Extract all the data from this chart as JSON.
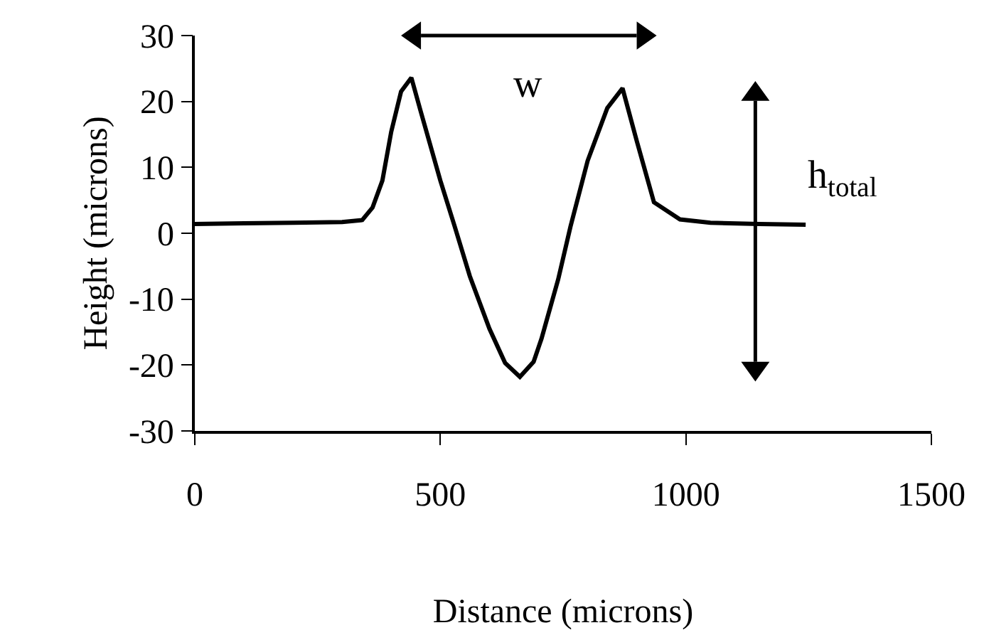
{
  "chart_data": {
    "type": "line",
    "xlabel": "Distance (microns)",
    "ylabel": "Height (microns)",
    "x": [
      0,
      100,
      200,
      300,
      341,
      362,
      382,
      400,
      420,
      441,
      460,
      500,
      529,
      560,
      600,
      632,
      662,
      690,
      706,
      740,
      765,
      800,
      840,
      871,
      900,
      935,
      988,
      1050,
      1150,
      1244
    ],
    "series": [
      {
        "color": "#000000",
        "values": [
          1.4,
          1.5,
          1.6,
          1.7,
          2.0,
          3.9,
          8.0,
          15.4,
          21.5,
          23.6,
          18.5,
          8.0,
          1.1,
          -6.5,
          -14.5,
          -19.7,
          -21.8,
          -19.5,
          -16.0,
          -7.0,
          1.0,
          11.0,
          19.0,
          22.0,
          14.0,
          4.7,
          2.1,
          1.6,
          1.4,
          1.3
        ]
      }
    ],
    "xlim": [
      0,
      1500
    ],
    "xticks": [
      0,
      500,
      1000,
      1500
    ],
    "ylim": [
      -30,
      30
    ],
    "yticks": [
      -30,
      -20,
      -10,
      0,
      10,
      20,
      30
    ],
    "marker": "none",
    "line_style": "solid",
    "annotations": [
      "w",
      "h$_{total}$"
    ]
  }
}
